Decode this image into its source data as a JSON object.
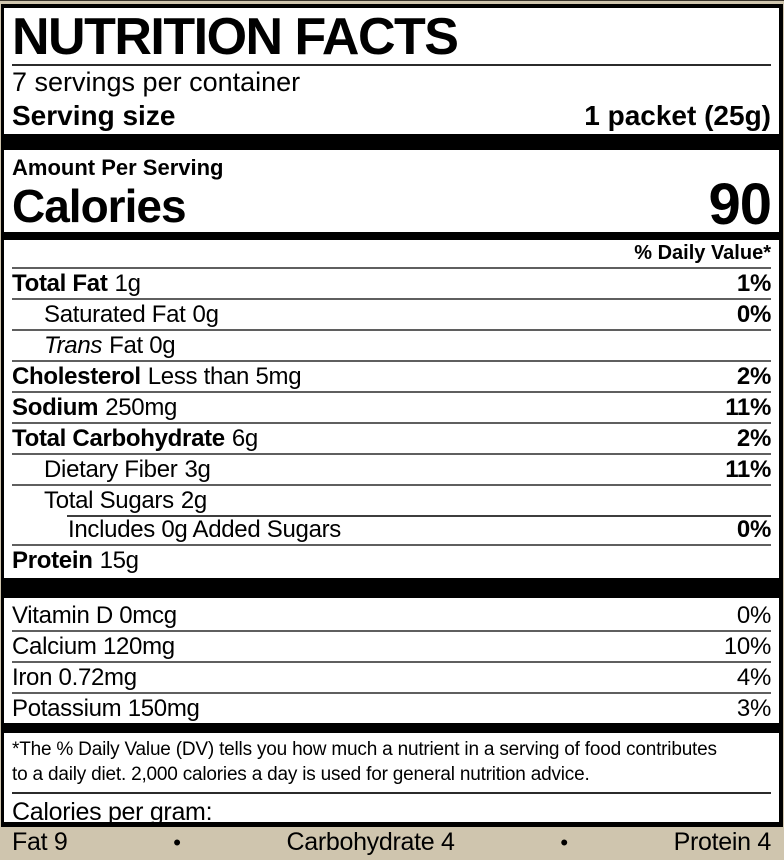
{
  "label": {
    "title": "NUTRITION FACTS",
    "servings_per_container": "7 servings per container",
    "serving_size_label": "Serving size",
    "serving_size_value": "1 packet (25g)",
    "amount_per_serving": "Amount Per Serving",
    "calories_label": "Calories",
    "calories_value": "90",
    "daily_value_header": "% Daily Value*",
    "nutrients": [
      {
        "name": "Total Fat",
        "amount": "1g",
        "dv": "1%"
      },
      {
        "name": "Saturated Fat",
        "amount": "0g",
        "dv": "0%"
      },
      {
        "name": "Trans",
        "amount": "Fat 0g",
        "dv": ""
      },
      {
        "name": "Cholesterol",
        "amount": "Less than 5mg",
        "dv": "2%"
      },
      {
        "name": "Sodium",
        "amount": "250mg",
        "dv": "11%"
      },
      {
        "name": "Total Carbohydrate",
        "amount": "6g",
        "dv": "2%"
      },
      {
        "name": "Dietary Fiber",
        "amount": "3g",
        "dv": "11%"
      },
      {
        "name": "Total Sugars",
        "amount": "2g",
        "dv": ""
      },
      {
        "name": "Includes 0g Added Sugars",
        "amount": "",
        "dv": "0%"
      },
      {
        "name": "Protein",
        "amount": "15g",
        "dv": ""
      }
    ],
    "vitamins": [
      {
        "name": "Vitamin D 0mcg",
        "dv": "0%"
      },
      {
        "name": "Calcium 120mg",
        "dv": "10%"
      },
      {
        "name": "Iron 0.72mg",
        "dv": "4%"
      },
      {
        "name": "Potassium 150mg",
        "dv": "3%"
      }
    ],
    "footnote_line1": "*The % Daily Value (DV) tells you how much a nutrient in a serving of food contributes",
    "footnote_line2": "to a daily diet. 2,000 calories a day is used for general nutrition advice.",
    "calories_per_gram_label": "Calories per gram:",
    "cpg_fat": "Fat 9",
    "cpg_carb": "Carbohydrate 4",
    "cpg_protein": "Protein 4",
    "bullet": "•"
  },
  "colors": {
    "text": "#000000",
    "label_background": "#ffffff",
    "frame_background": "#cfc5ae",
    "bar": "#000000"
  }
}
